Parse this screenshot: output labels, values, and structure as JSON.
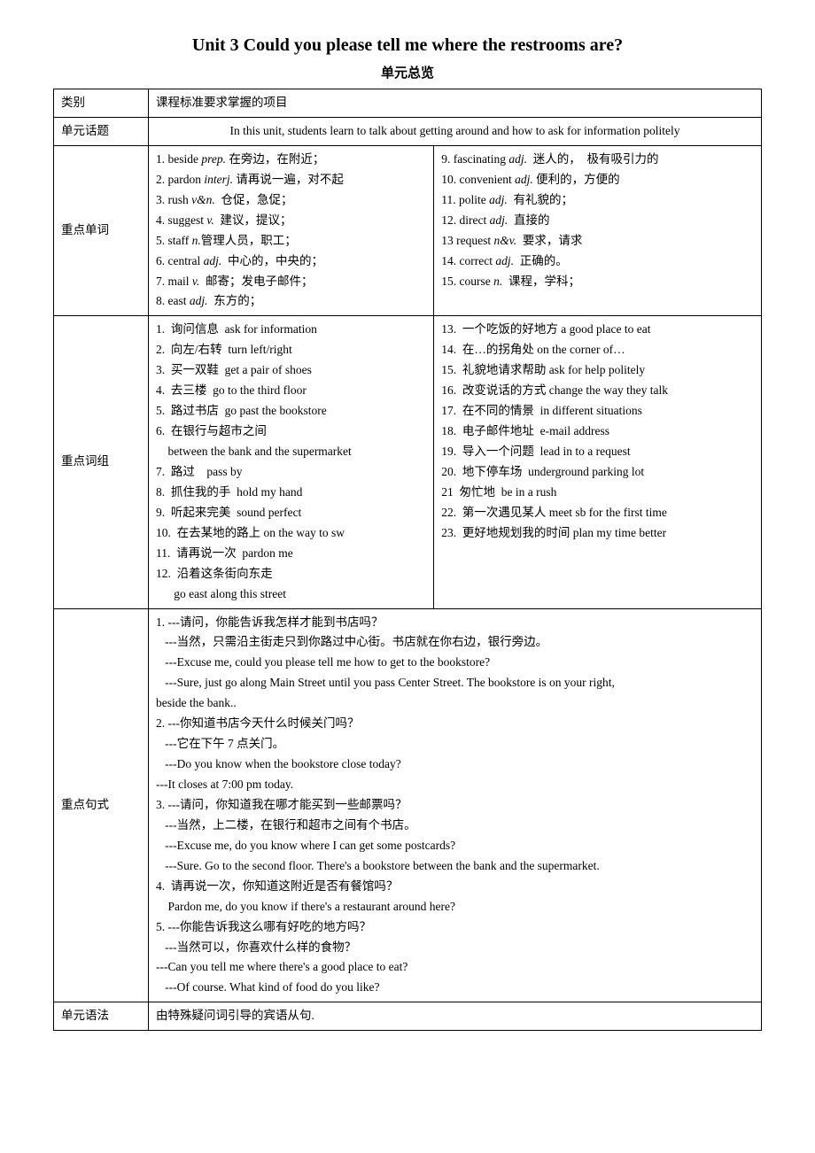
{
  "title": "Unit 3 Could you please tell me where the restrooms are?",
  "subtitle": "单元总览",
  "header": {
    "col1": "类别",
    "col2": "课程标准要求掌握的项目"
  },
  "topic": {
    "label": "单元话题",
    "text": "In this unit, students learn to talk about getting around and how to ask for information politely"
  },
  "vocab": {
    "label": "重点单词",
    "left": [
      "1. beside prep. 在旁边，在附近；",
      "2. pardon interj. 请再说一遍，对不起",
      "3. rush v&n.  仓促，急促；",
      "4. suggest v.  建议，提议；",
      "5. staff n.管理人员，职工；",
      "6. central adj.  中心的，中央的；",
      "7. mail v.  邮寄；发电子邮件；",
      "8. east adj.  东方的；"
    ],
    "right": [
      "9. fascinating adj.  迷人的，  极有吸引力的",
      "10. convenient adj. 便利的，方便的",
      "11. polite adj.  有礼貌的；",
      "12. direct adj.  直接的",
      "13 request n&v.  要求，请求",
      "14. correct adj.  正确的。",
      "15. course n.  课程，学科；"
    ]
  },
  "phrases": {
    "label": "重点词组",
    "left": [
      "1.  询问信息  ask for information",
      "2.  向左/右转  turn left/right",
      "3.  买一双鞋  get a pair of shoes",
      "4.  去三楼  go to the third floor",
      "5.  路过书店  go past the bookstore",
      "6.  在银行与超市之间",
      "    between the bank and the supermarket",
      "7.  路过    pass by",
      "8.  抓住我的手  hold my hand",
      "9.  听起来完美  sound perfect",
      "10.  在去某地的路上 on the way to sw",
      "11.  请再说一次  pardon me",
      "12.  沿着这条街向东走",
      "      go east along this street"
    ],
    "right": [
      "13.  一个吃饭的好地方 a good place to eat",
      "14.  在…的拐角处 on the corner of…",
      "15.  礼貌地请求帮助 ask for help politely",
      "16.  改变说话的方式 change the way they talk",
      "17.  在不同的情景  in different situations",
      "18.  电子邮件地址  e-mail address",
      "19.  导入一个问题  lead in to a request",
      "20.  地下停车场  underground parking lot",
      "21  匆忙地  be in a rush",
      "22.  第一次遇见某人 meet sb for the first time",
      "23.  更好地规划我的时间 plan my time better"
    ]
  },
  "sentences": {
    "label": "重点句式",
    "lines": [
      "1. ---请问，你能告诉我怎样才能到书店吗？",
      "   ---当然，只需沿主街走只到你路过中心街。书店就在你右边，银行旁边。",
      "   ---Excuse me, could you please tell me how to get to the bookstore?",
      "   ---Sure, just go along Main Street until you pass Center Street. The bookstore is on your right,",
      "beside the bank..",
      "2. ---你知道书店今天什么时候关门吗？",
      "   ---它在下午 7 点关门。",
      "   ---Do you know when the bookstore close today?",
      "---It closes at 7:00 pm today.",
      "3. ---请问，你知道我在哪才能买到一些邮票吗？",
      "   ---当然，上二楼，在银行和超市之间有个书店。",
      "   ---Excuse me, do you know where I can get some postcards?",
      "   ---Sure. Go to the second floor. There's a bookstore between the bank and the supermarket.",
      "4.  请再说一次，你知道这附近是否有餐馆吗？",
      "    Pardon me, do you know if there's a restaurant around here?",
      "5. ---你能告诉我这么哪有好吃的地方吗？",
      "   ---当然可以，你喜欢什么样的食物？",
      "---Can you tell me where there's a good place to eat?",
      "   ---Of course. What kind of food do you like?"
    ]
  },
  "grammar": {
    "label": "单元语法",
    "text": "由特殊疑问词引导的宾语从句."
  }
}
